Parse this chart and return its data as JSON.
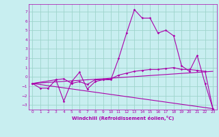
{
  "xlabel": "Windchill (Refroidissement éolien,°C)",
  "background_color": "#c8eef0",
  "grid_color": "#9dd4cc",
  "line_color": "#aa00aa",
  "xlim": [
    -0.5,
    23.5
  ],
  "ylim": [
    -3.5,
    7.8
  ],
  "yticks": [
    -3,
    -2,
    -1,
    0,
    1,
    2,
    3,
    4,
    5,
    6,
    7
  ],
  "xticks": [
    0,
    1,
    2,
    3,
    4,
    5,
    6,
    7,
    8,
    9,
    10,
    11,
    12,
    13,
    14,
    15,
    16,
    17,
    18,
    19,
    20,
    21,
    22,
    23
  ],
  "series1_x": [
    0,
    1,
    2,
    3,
    4,
    5,
    6,
    7,
    8,
    9,
    10,
    11,
    12,
    13,
    14,
    15,
    16,
    17,
    18,
    19,
    20,
    21,
    22,
    23
  ],
  "series1_y": [
    -0.7,
    -1.2,
    -1.2,
    -0.3,
    -0.2,
    -0.7,
    -0.5,
    -0.8,
    -0.3,
    -0.3,
    -0.3,
    2.0,
    4.7,
    7.2,
    6.3,
    6.3,
    4.7,
    5.0,
    4.4,
    1.2,
    0.6,
    2.3,
    -0.7,
    -3.4
  ],
  "series2_x": [
    0,
    3,
    4,
    5,
    6,
    7,
    8,
    9,
    10,
    11,
    12,
    13,
    14,
    15,
    16,
    17,
    18,
    19,
    20,
    21,
    22,
    23
  ],
  "series2_y": [
    -0.7,
    -0.3,
    -2.6,
    -0.5,
    0.5,
    -1.3,
    -0.5,
    -0.3,
    -0.2,
    0.2,
    0.4,
    0.6,
    0.7,
    0.8,
    0.8,
    0.9,
    1.0,
    0.8,
    0.8,
    0.7,
    0.6,
    -3.4
  ],
  "series3_x": [
    0,
    23
  ],
  "series3_y": [
    -0.7,
    -3.4
  ],
  "series4_x": [
    0,
    23
  ],
  "series4_y": [
    -0.7,
    0.6
  ]
}
